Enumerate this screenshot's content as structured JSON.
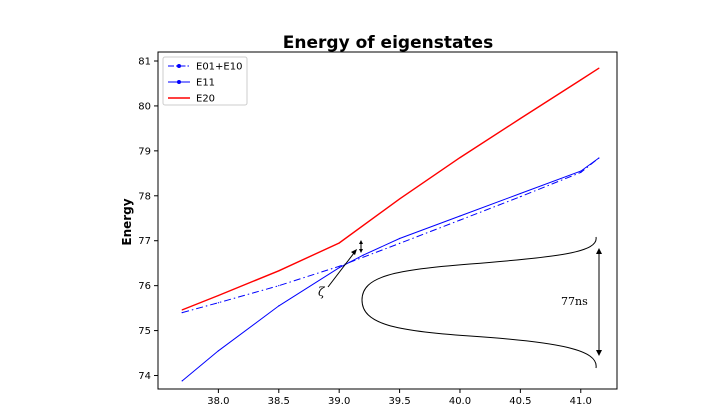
{
  "chart_data": {
    "type": "line",
    "title": "Energy of eigenstates",
    "xlabel": "",
    "ylabel": "Energy",
    "xlim": [
      37.5,
      41.3
    ],
    "ylim": [
      73.7,
      81.2
    ],
    "xticks": [
      "38.0",
      "38.5",
      "39.0",
      "39.5",
      "40.0",
      "40.5",
      "41.0"
    ],
    "yticks": [
      "74",
      "75",
      "76",
      "77",
      "78",
      "79",
      "80",
      "81"
    ],
    "legend_position": "top-left",
    "series": [
      {
        "name": "E01+E10",
        "style": "dash-dot with markers",
        "color": "#0000ff",
        "x": [
          37.7,
          38.0,
          38.5,
          39.0,
          39.5,
          40.0,
          40.5,
          41.0,
          41.15
        ],
        "y": [
          75.4,
          75.62,
          76.0,
          76.43,
          76.94,
          77.46,
          77.98,
          78.52,
          78.84
        ]
      },
      {
        "name": "E11",
        "style": "solid with markers",
        "color": "#0000ff",
        "x": [
          37.7,
          38.0,
          38.5,
          39.0,
          39.2,
          39.5,
          40.0,
          40.5,
          41.0,
          41.15
        ],
        "y": [
          73.88,
          74.55,
          75.55,
          76.4,
          76.68,
          77.05,
          77.55,
          78.05,
          78.55,
          78.84
        ]
      },
      {
        "name": "E20",
        "style": "solid",
        "color": "#ff0000",
        "x": [
          37.7,
          38.0,
          38.5,
          39.0,
          39.5,
          40.0,
          40.5,
          41.0,
          41.15
        ],
        "y": [
          75.46,
          75.78,
          76.33,
          76.95,
          77.93,
          78.85,
          79.72,
          80.58,
          80.84
        ]
      }
    ],
    "annotations": {
      "zeta_label": "ζ",
      "duration_label": "77ns"
    }
  }
}
